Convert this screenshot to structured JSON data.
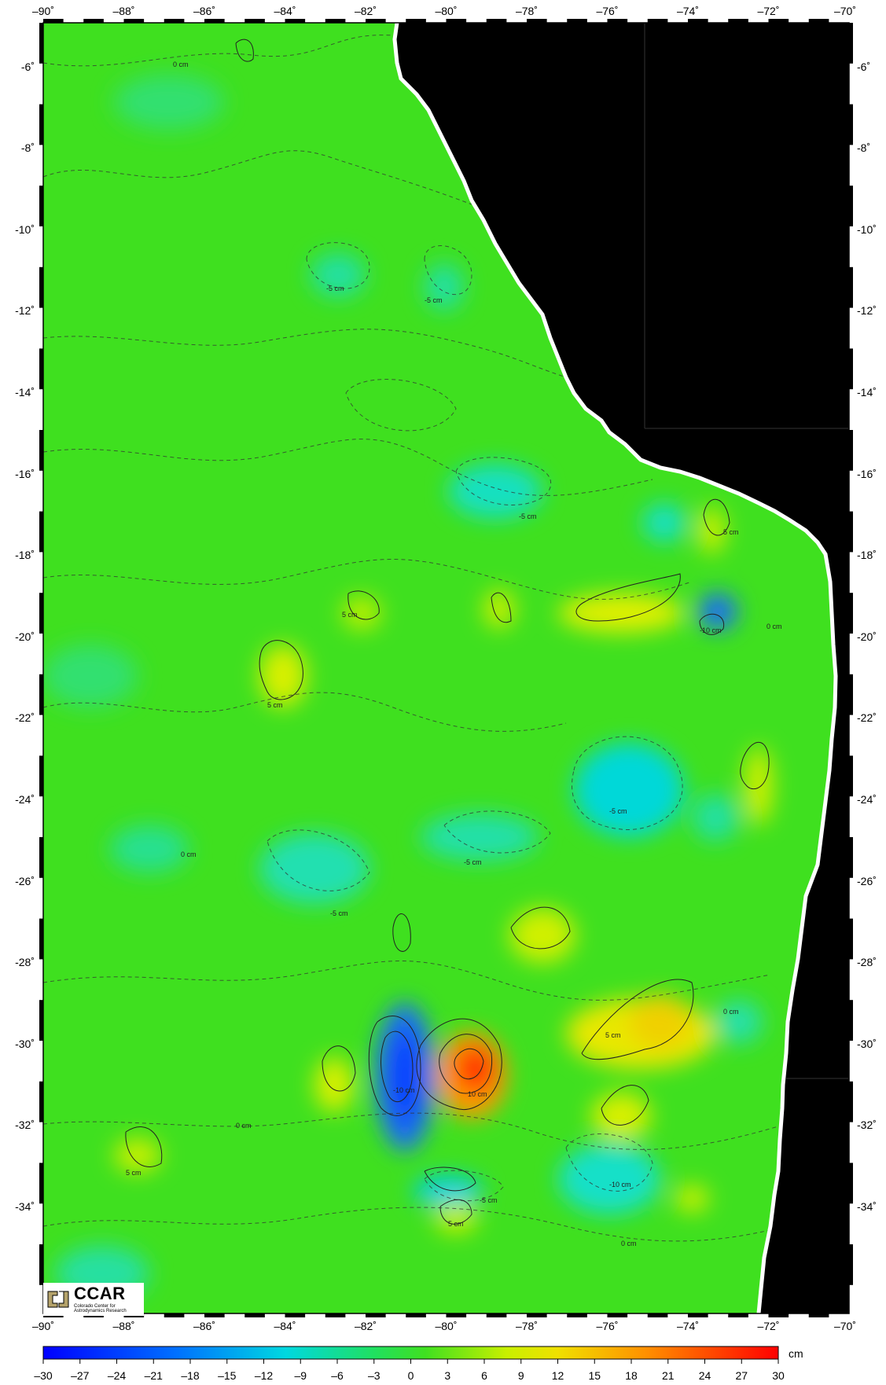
{
  "map": {
    "lon_ticks": [
      "–90˚",
      "–88˚",
      "–86˚",
      "–84˚",
      "–82˚",
      "–80˚",
      "–78˚",
      "–76˚",
      "–74˚",
      "–72˚",
      "–70˚"
    ],
    "lat_ticks": [
      "-6˚",
      "-8˚",
      "-10˚",
      "-12˚",
      "-14˚",
      "-16˚",
      "-18˚",
      "-20˚",
      "-22˚",
      "-24˚",
      "-26˚",
      "-28˚",
      "-30˚",
      "-32˚",
      "-34˚"
    ],
    "lon_range": [
      -90,
      -70
    ],
    "lat_range": [
      -5,
      -35.3
    ],
    "contour_labels": [
      "0 cm",
      "5 cm",
      "-5 cm",
      "10 cm",
      "-10 cm"
    ],
    "land_color": "#000000",
    "ocean_base_color": "#3fe01f"
  },
  "colorbar": {
    "unit": "cm",
    "ticks": [
      "–30",
      "–27",
      "–24",
      "–21",
      "–18",
      "–15",
      "–12",
      "–9",
      "–6",
      "–3",
      "0",
      "3",
      "6",
      "9",
      "12",
      "15",
      "18",
      "21",
      "24",
      "27",
      "30"
    ],
    "range": [
      -30,
      30
    ],
    "stops": [
      "#0000ff",
      "#0090ff",
      "#00e0d0",
      "#20e020",
      "#40e010",
      "#e0f000",
      "#ff9000",
      "#ff0000"
    ]
  },
  "logo": {
    "title": "CCAR",
    "subtitle_line1": "Colorado Center for",
    "subtitle_line2": "Astrodynamics Research"
  }
}
